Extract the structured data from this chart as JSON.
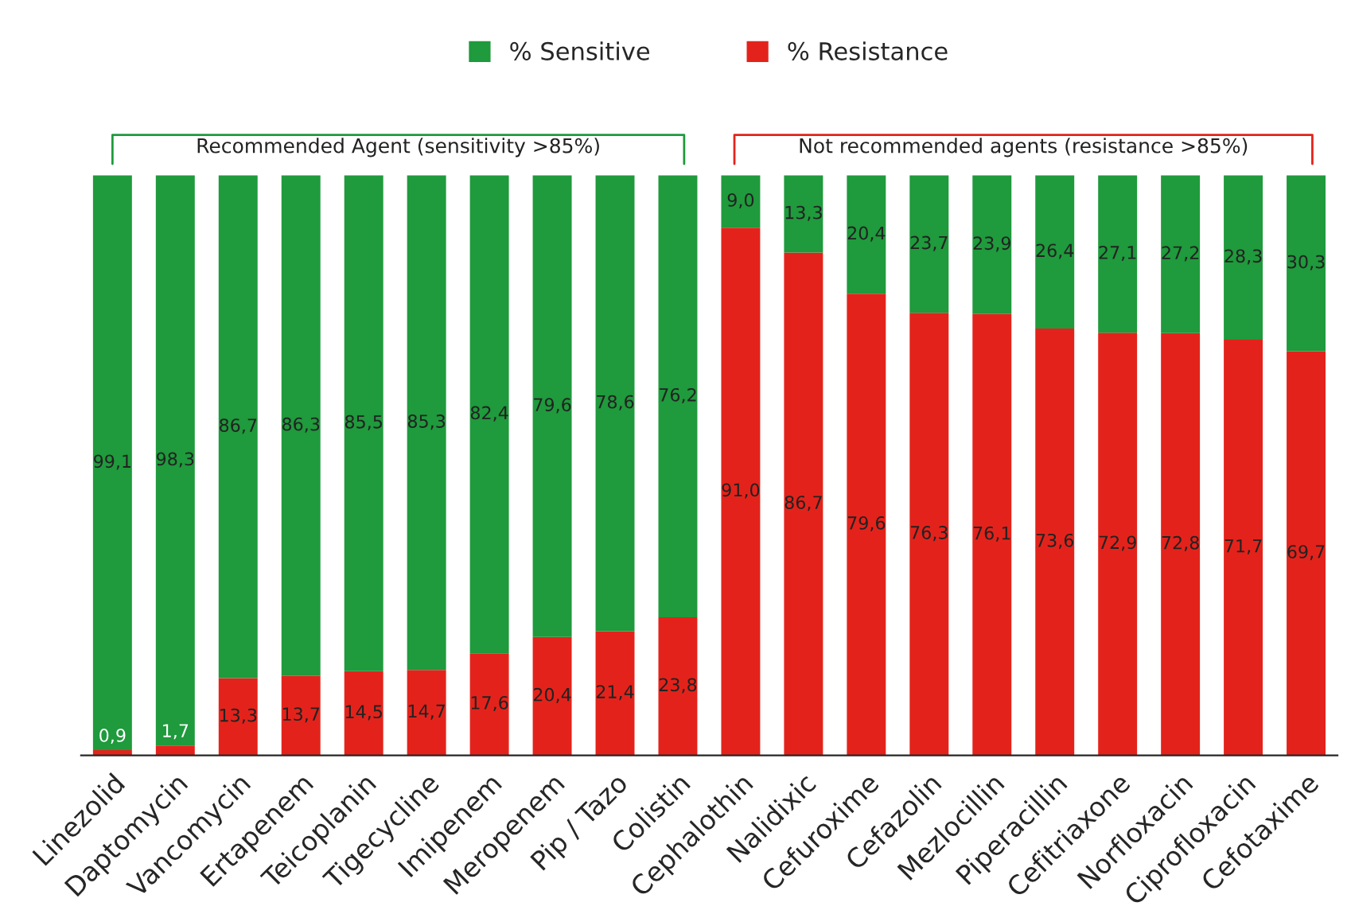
{
  "chart_data": {
    "type": "bar",
    "stacked": true,
    "legend": "top",
    "grid": false,
    "annotations": [
      "Recommended Agent (sensitivity >85%)",
      "Not recommended agents (resistance >85%)"
    ],
    "categories": [
      "Linezolid",
      "Daptomycin",
      "Vancomycin",
      "Ertapenem",
      "Teicoplanin",
      "Tigecycline",
      "Imipenem",
      "Meropenem",
      "Pip / Tazo",
      "Colistin",
      "Cephalothin",
      "Nalidixic",
      "Cefuroxime",
      "Cefazolin",
      "Mezlocillin",
      "Piperacillin",
      "Cefitriaxone",
      "Norfloxacin",
      "Ciprofloxacin",
      "Cefotaxime"
    ],
    "series": [
      {
        "name": "% Resistance",
        "color": "#e3231b",
        "values": [
          0.9,
          1.7,
          13.3,
          13.7,
          14.5,
          14.7,
          17.6,
          20.4,
          21.4,
          23.8,
          91.0,
          86.7,
          79.6,
          76.3,
          76.1,
          73.6,
          72.9,
          72.8,
          71.7,
          69.7
        ],
        "value_labels": [
          "0,9",
          "1,7",
          "13,3",
          "13,7",
          "14,5",
          "14,7",
          "17,6",
          "20,4",
          "21,4",
          "23,8",
          "91,0",
          "86,7",
          "79,6",
          "76,3",
          "76,1",
          "73,6",
          "72,9",
          "72,8",
          "71,7",
          "69,7"
        ]
      },
      {
        "name": "% Sensitive",
        "color": "#1f9a3c",
        "values": [
          99.1,
          98.3,
          86.7,
          86.3,
          85.5,
          85.3,
          82.4,
          79.6,
          78.6,
          76.2,
          9.0,
          13.3,
          20.4,
          23.7,
          23.9,
          26.4,
          27.1,
          27.2,
          28.3,
          30.3
        ],
        "value_labels": [
          "99,1",
          "98,3",
          "86,7",
          "86,3",
          "85,5",
          "85,3",
          "82,4",
          "79,6",
          "78,6",
          "76,2",
          "9,0",
          "13,3",
          "20,4",
          "23,7",
          "23,9",
          "26,4",
          "27,1",
          "27,2",
          "28,3",
          "30,3"
        ]
      }
    ]
  }
}
